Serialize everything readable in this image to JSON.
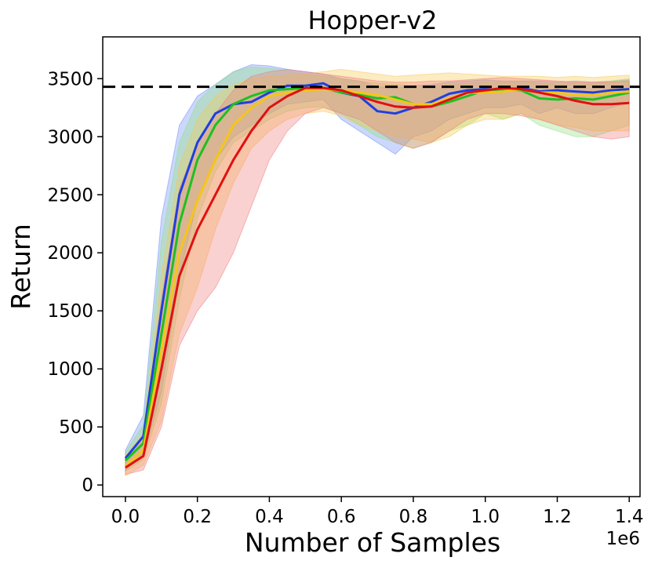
{
  "chart_data": {
    "type": "line",
    "title": "Hopper-v2",
    "xlabel": "Number of Samples",
    "ylabel": "Return",
    "x_offset_label": "1e6",
    "xlim": [
      -0.063,
      1.43
    ],
    "ylim": [
      -100,
      3860
    ],
    "x_ticks": [
      {
        "value": 0.0,
        "label": "0.0"
      },
      {
        "value": 0.2,
        "label": "0.2"
      },
      {
        "value": 0.4,
        "label": "0.4"
      },
      {
        "value": 0.6,
        "label": "0.6"
      },
      {
        "value": 0.8,
        "label": "0.8"
      },
      {
        "value": 1.0,
        "label": "1.0"
      },
      {
        "value": 1.2,
        "label": "1.2"
      },
      {
        "value": 1.4,
        "label": "1.4"
      }
    ],
    "y_ticks": [
      {
        "value": 0,
        "label": "0"
      },
      {
        "value": 500,
        "label": "500"
      },
      {
        "value": 1000,
        "label": "1000"
      },
      {
        "value": 1500,
        "label": "1500"
      },
      {
        "value": 2000,
        "label": "2000"
      },
      {
        "value": 2500,
        "label": "2500"
      },
      {
        "value": 3000,
        "label": "3000"
      },
      {
        "value": 3500,
        "label": "3500"
      }
    ],
    "grid": false,
    "legend": "none",
    "reference_line": {
      "y": 3430,
      "color": "#000000",
      "style": "dashed"
    },
    "x": [
      0.0,
      0.05,
      0.1,
      0.15,
      0.2,
      0.25,
      0.3,
      0.35,
      0.4,
      0.45,
      0.5,
      0.55,
      0.6,
      0.65,
      0.7,
      0.75,
      0.8,
      0.85,
      0.9,
      0.95,
      1.0,
      1.05,
      1.1,
      1.15,
      1.2,
      1.25,
      1.3,
      1.35,
      1.4
    ],
    "series": [
      {
        "color": "#1f3fe0",
        "band_color": "#6b8cf5",
        "mean": [
          230,
          420,
          1500,
          2500,
          2950,
          3200,
          3280,
          3300,
          3380,
          3440,
          3440,
          3460,
          3380,
          3350,
          3220,
          3200,
          3250,
          3300,
          3370,
          3400,
          3410,
          3400,
          3420,
          3390,
          3400,
          3390,
          3380,
          3400,
          3410
        ],
        "upper": [
          300,
          600,
          2300,
          3100,
          3350,
          3450,
          3560,
          3620,
          3610,
          3580,
          3560,
          3540,
          3500,
          3480,
          3430,
          3420,
          3440,
          3450,
          3470,
          3480,
          3490,
          3480,
          3480,
          3480,
          3470,
          3480,
          3470,
          3480,
          3490
        ],
        "lower": [
          130,
          250,
          800,
          1800,
          2450,
          2800,
          3000,
          3100,
          3200,
          3280,
          3300,
          3320,
          3150,
          3050,
          2950,
          2850,
          3000,
          3050,
          3150,
          3200,
          3250,
          3250,
          3280,
          3200,
          3250,
          3200,
          3200,
          3250,
          3300
        ]
      },
      {
        "color": "#1dc021",
        "band_color": "#8fe07f",
        "mean": [
          210,
          360,
          1300,
          2250,
          2800,
          3100,
          3280,
          3350,
          3400,
          3410,
          3420,
          3420,
          3380,
          3360,
          3330,
          3340,
          3280,
          3260,
          3300,
          3350,
          3400,
          3410,
          3400,
          3330,
          3320,
          3330,
          3320,
          3350,
          3380
        ],
        "upper": [
          280,
          520,
          2100,
          2950,
          3300,
          3450,
          3560,
          3600,
          3590,
          3570,
          3540,
          3520,
          3500,
          3480,
          3460,
          3450,
          3440,
          3430,
          3450,
          3460,
          3470,
          3470,
          3480,
          3460,
          3450,
          3460,
          3450,
          3480,
          3500
        ],
        "lower": [
          120,
          220,
          700,
          1600,
          2300,
          2700,
          2950,
          3050,
          3150,
          3220,
          3250,
          3260,
          3200,
          3100,
          3000,
          2950,
          2900,
          2950,
          3050,
          3100,
          3200,
          3150,
          3200,
          3100,
          3050,
          3000,
          3000,
          3050,
          3100
        ]
      },
      {
        "color": "#f5c518",
        "band_color": "#f7c84d",
        "mean": [
          160,
          300,
          1150,
          2000,
          2450,
          2800,
          3100,
          3250,
          3350,
          3380,
          3400,
          3410,
          3400,
          3380,
          3360,
          3320,
          3280,
          3280,
          3330,
          3380,
          3380,
          3390,
          3410,
          3380,
          3380,
          3360,
          3360,
          3380,
          3390
        ],
        "upper": [
          250,
          450,
          1800,
          2750,
          3150,
          3350,
          3450,
          3500,
          3520,
          3530,
          3540,
          3560,
          3580,
          3560,
          3540,
          3520,
          3530,
          3540,
          3550,
          3540,
          3530,
          3520,
          3520,
          3520,
          3510,
          3520,
          3510,
          3520,
          3530
        ],
        "lower": [
          80,
          170,
          550,
          1300,
          1700,
          2200,
          2600,
          2900,
          3050,
          3150,
          3200,
          3220,
          3180,
          3100,
          3050,
          3000,
          2980,
          2950,
          3000,
          3100,
          3150,
          3150,
          3200,
          3150,
          3100,
          3080,
          3050,
          3050,
          3050
        ]
      },
      {
        "color": "#e01010",
        "band_color": "#f07a7a",
        "mean": [
          150,
          250,
          1000,
          1800,
          2200,
          2500,
          2800,
          3050,
          3250,
          3350,
          3420,
          3420,
          3400,
          3350,
          3300,
          3260,
          3250,
          3260,
          3320,
          3380,
          3400,
          3420,
          3410,
          3380,
          3350,
          3310,
          3280,
          3280,
          3290
        ],
        "upper": [
          230,
          420,
          1600,
          2550,
          2950,
          3200,
          3400,
          3520,
          3560,
          3580,
          3560,
          3540,
          3520,
          3500,
          3480,
          3470,
          3470,
          3480,
          3480,
          3490,
          3500,
          3510,
          3500,
          3490,
          3480,
          3470,
          3470,
          3470,
          3480
        ],
        "lower": [
          90,
          130,
          500,
          1200,
          1500,
          1700,
          2000,
          2400,
          2800,
          3050,
          3200,
          3250,
          3200,
          3150,
          3050,
          2950,
          2900,
          2950,
          3050,
          3150,
          3200,
          3200,
          3180,
          3150,
          3100,
          3050,
          3000,
          2980,
          3000
        ]
      }
    ]
  }
}
